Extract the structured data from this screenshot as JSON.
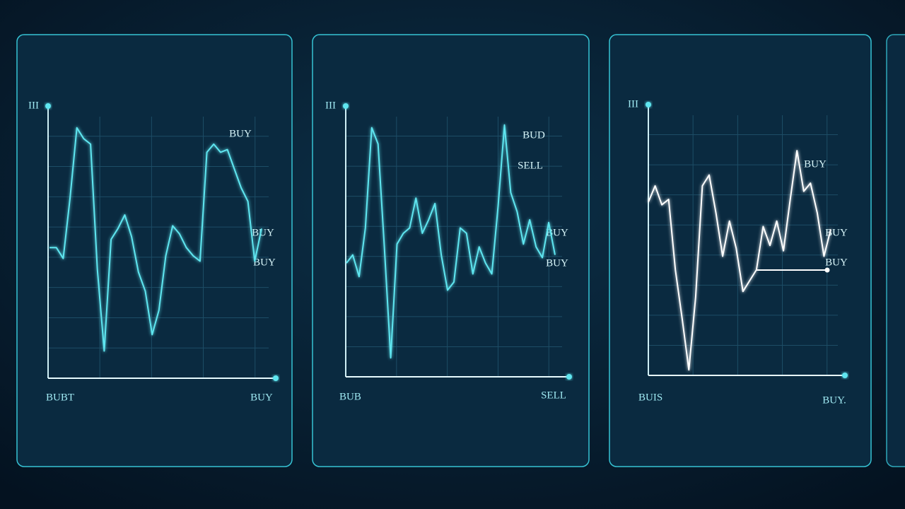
{
  "chart_data": [
    {
      "type": "line",
      "y_label": "III",
      "annotations": [
        "BUY",
        "BUY",
        "BUY"
      ],
      "x_label_left": "BUBT",
      "x_label_right": "BUY",
      "color": "#5ee6f0",
      "ylim": [
        0,
        100
      ],
      "values": [
        48,
        48,
        44,
        66,
        92,
        88,
        86,
        40,
        10,
        51,
        55,
        60,
        52,
        39,
        32,
        16,
        25,
        45,
        56,
        53,
        48,
        45,
        43,
        83,
        86,
        83,
        84,
        77,
        70,
        65,
        43,
        55
      ]
    },
    {
      "type": "line",
      "y_label": "III",
      "annotations": [
        "BUD",
        "SELL",
        "BUY",
        "BUY"
      ],
      "x_label_left": "BUB",
      "x_label_right": "SELL",
      "color": "#5ee6f0",
      "ylim": [
        0,
        100
      ],
      "values": [
        42,
        45,
        37,
        55,
        92,
        86,
        48,
        7,
        49,
        53,
        55,
        66,
        53,
        58,
        64,
        45,
        32,
        35,
        55,
        53,
        38,
        48,
        42,
        38,
        63,
        93,
        68,
        61,
        49,
        58,
        48,
        44,
        57,
        45
      ]
    },
    {
      "type": "line",
      "y_label": "III",
      "annotations": [
        "BUY",
        "BUY",
        "BUY"
      ],
      "x_label_left": "BUIS",
      "x_label_right": "BUY.",
      "color": "#ffffff",
      "ylim": [
        0,
        100
      ],
      "values": [
        64,
        70,
        63,
        65,
        39,
        21,
        2,
        29,
        70,
        74,
        60,
        44,
        57,
        47,
        31,
        35,
        39,
        55,
        48,
        57,
        46,
        65,
        83,
        68,
        71,
        60,
        44,
        54
      ]
    }
  ]
}
